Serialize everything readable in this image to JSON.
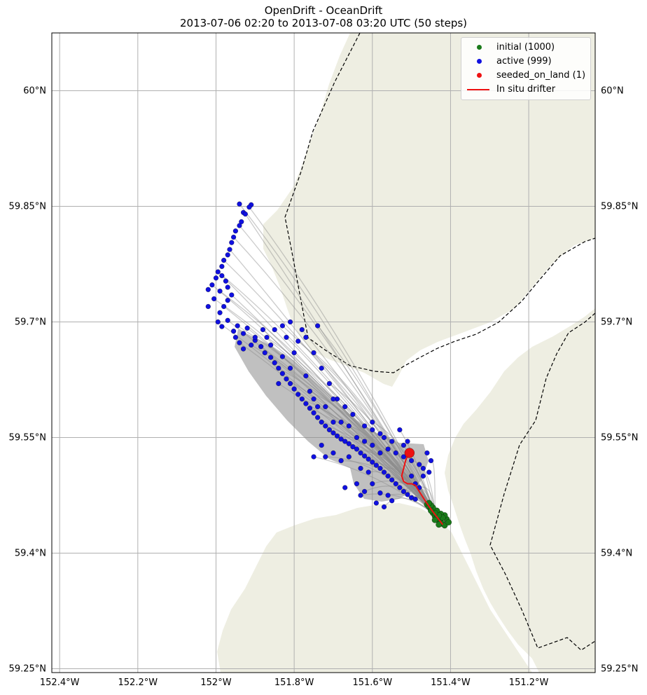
{
  "colors": {
    "land": "#eeeee2",
    "ocean": "#ffffff",
    "grid": "#b0b0b0",
    "trajectory": "#8c8c8c",
    "initial": "#1a7a1a",
    "active": "#1010e0",
    "seeded": "#ee1111",
    "drifter": "#ee1111",
    "boundary": "#000000"
  },
  "chart_data": {
    "type": "scatter",
    "title": "OpenDrift - OceanDrift",
    "subtitle": "2013-07-06 02:20 to 2013-07-08 03:20 UTC (50 steps)",
    "xlim": [
      -152.42,
      -151.03
    ],
    "ylim": [
      59.245,
      60.075
    ],
    "grid": true,
    "x_ticks": [
      -152.4,
      -152.2,
      -152.0,
      -151.8,
      -151.6,
      -151.4,
      -151.2
    ],
    "x_tick_labels": [
      "152.4°W",
      "152.2°W",
      "152°W",
      "151.8°W",
      "151.6°W",
      "151.4°W",
      "151.2°W"
    ],
    "y_ticks": [
      60.0,
      59.85,
      59.7,
      59.55,
      59.4,
      59.25
    ],
    "y_tick_labels": [
      "60°N",
      "59.85°N",
      "59.7°N",
      "59.55°N",
      "59.4°N",
      "59.25°N"
    ],
    "legend_position": "top-right",
    "legend": [
      {
        "label": "initial (1000)",
        "kind": "dot",
        "color": "#1a7a1a"
      },
      {
        "label": "active (999)",
        "kind": "dot",
        "color": "#1010e0"
      },
      {
        "label": "seeded_on_land (1)",
        "kind": "dot",
        "color": "#ee1111"
      },
      {
        "label": "In situ drifter",
        "kind": "line",
        "color": "#ee1111"
      }
    ],
    "series": [
      {
        "name": "initial (1000)",
        "points": [
          [
            -151.46,
            59.463
          ],
          [
            -151.455,
            59.46
          ],
          [
            -151.45,
            59.456
          ],
          [
            -151.445,
            59.452
          ],
          [
            -151.44,
            59.448
          ],
          [
            -151.435,
            59.446
          ],
          [
            -151.43,
            59.442
          ],
          [
            -151.425,
            59.44
          ],
          [
            -151.42,
            59.438
          ],
          [
            -151.41,
            59.444
          ],
          [
            -151.415,
            59.449
          ],
          [
            -151.425,
            59.451
          ],
          [
            -151.435,
            59.455
          ],
          [
            -151.445,
            59.459
          ],
          [
            -151.45,
            59.462
          ],
          [
            -151.455,
            59.465
          ],
          [
            -151.44,
            59.443
          ],
          [
            -151.43,
            59.437
          ],
          [
            -151.415,
            59.436
          ],
          [
            -151.405,
            59.44
          ],
          [
            -151.42,
            59.446
          ],
          [
            -151.43,
            59.449
          ],
          [
            -151.44,
            59.452
          ],
          [
            -151.45,
            59.455
          ]
        ]
      },
      {
        "name": "active (999)",
        "points": [
          [
            -151.94,
            59.853
          ],
          [
            -151.91,
            59.852
          ],
          [
            -151.915,
            59.849
          ],
          [
            -151.93,
            59.842
          ],
          [
            -151.925,
            59.84
          ],
          [
            -151.935,
            59.83
          ],
          [
            -151.94,
            59.825
          ],
          [
            -151.95,
            59.818
          ],
          [
            -151.955,
            59.81
          ],
          [
            -151.96,
            59.803
          ],
          [
            -151.965,
            59.794
          ],
          [
            -151.97,
            59.787
          ],
          [
            -151.98,
            59.78
          ],
          [
            -151.985,
            59.772
          ],
          [
            -151.995,
            59.765
          ],
          [
            -152.0,
            59.757
          ],
          [
            -151.985,
            59.76
          ],
          [
            -151.975,
            59.753
          ],
          [
            -152.01,
            59.748
          ],
          [
            -152.02,
            59.742
          ],
          [
            -151.99,
            59.74
          ],
          [
            -151.97,
            59.745
          ],
          [
            -151.96,
            59.735
          ],
          [
            -151.97,
            59.728
          ],
          [
            -151.98,
            59.72
          ],
          [
            -151.99,
            59.712
          ],
          [
            -152.005,
            59.73
          ],
          [
            -152.02,
            59.72
          ],
          [
            -151.995,
            59.7
          ],
          [
            -151.985,
            59.694
          ],
          [
            -151.97,
            59.702
          ],
          [
            -151.955,
            59.688
          ],
          [
            -151.945,
            59.695
          ],
          [
            -151.93,
            59.685
          ],
          [
            -151.92,
            59.692
          ],
          [
            -151.95,
            59.68
          ],
          [
            -151.94,
            59.673
          ],
          [
            -151.93,
            59.665
          ],
          [
            -151.91,
            59.67
          ],
          [
            -151.9,
            59.676
          ],
          [
            -151.885,
            59.668
          ],
          [
            -151.875,
            59.66
          ],
          [
            -151.86,
            59.654
          ],
          [
            -151.85,
            59.647
          ],
          [
            -151.84,
            59.64
          ],
          [
            -151.83,
            59.633
          ],
          [
            -151.82,
            59.626
          ],
          [
            -151.81,
            59.62
          ],
          [
            -151.8,
            59.613
          ],
          [
            -151.79,
            59.606
          ],
          [
            -151.78,
            59.6
          ],
          [
            -151.77,
            59.594
          ],
          [
            -151.76,
            59.588
          ],
          [
            -151.75,
            59.582
          ],
          [
            -151.74,
            59.576
          ],
          [
            -151.73,
            59.57
          ],
          [
            -151.72,
            59.565
          ],
          [
            -151.71,
            59.56
          ],
          [
            -151.7,
            59.556
          ],
          [
            -151.69,
            59.552
          ],
          [
            -151.68,
            59.548
          ],
          [
            -151.67,
            59.545
          ],
          [
            -151.66,
            59.542
          ],
          [
            -151.65,
            59.538
          ],
          [
            -151.64,
            59.535
          ],
          [
            -151.63,
            59.53
          ],
          [
            -151.62,
            59.526
          ],
          [
            -151.61,
            59.522
          ],
          [
            -151.6,
            59.518
          ],
          [
            -151.59,
            59.514
          ],
          [
            -151.58,
            59.51
          ],
          [
            -151.57,
            59.505
          ],
          [
            -151.56,
            59.5
          ],
          [
            -151.55,
            59.495
          ],
          [
            -151.54,
            59.49
          ],
          [
            -151.53,
            59.485
          ],
          [
            -151.52,
            59.48
          ],
          [
            -151.51,
            59.476
          ],
          [
            -151.5,
            59.472
          ],
          [
            -151.49,
            59.47
          ],
          [
            -151.82,
            59.68
          ],
          [
            -151.8,
            59.66
          ],
          [
            -151.79,
            59.675
          ],
          [
            -151.81,
            59.64
          ],
          [
            -151.83,
            59.655
          ],
          [
            -151.86,
            59.67
          ],
          [
            -151.84,
            59.62
          ],
          [
            -151.77,
            59.63
          ],
          [
            -151.76,
            59.61
          ],
          [
            -151.75,
            59.6
          ],
          [
            -151.74,
            59.59
          ],
          [
            -151.72,
            59.59
          ],
          [
            -151.7,
            59.57
          ],
          [
            -151.68,
            59.57
          ],
          [
            -151.66,
            59.565
          ],
          [
            -151.64,
            59.55
          ],
          [
            -151.62,
            59.545
          ],
          [
            -151.6,
            59.54
          ],
          [
            -151.58,
            59.53
          ],
          [
            -151.56,
            59.535
          ],
          [
            -151.54,
            59.53
          ],
          [
            -151.52,
            59.525
          ],
          [
            -151.5,
            59.52
          ],
          [
            -151.48,
            59.515
          ],
          [
            -151.47,
            59.51
          ],
          [
            -151.73,
            59.54
          ],
          [
            -151.72,
            59.525
          ],
          [
            -151.7,
            59.53
          ],
          [
            -151.68,
            59.52
          ],
          [
            -151.66,
            59.525
          ],
          [
            -151.75,
            59.525
          ],
          [
            -151.63,
            59.51
          ],
          [
            -151.61,
            59.505
          ],
          [
            -151.64,
            59.49
          ],
          [
            -151.6,
            59.49
          ],
          [
            -151.58,
            59.478
          ],
          [
            -151.56,
            59.475
          ],
          [
            -151.55,
            59.468
          ],
          [
            -151.57,
            59.46
          ],
          [
            -151.59,
            59.465
          ],
          [
            -151.62,
            59.48
          ],
          [
            -151.67,
            59.485
          ],
          [
            -151.63,
            59.475
          ],
          [
            -151.5,
            59.5
          ],
          [
            -151.49,
            59.49
          ],
          [
            -151.46,
            59.53
          ],
          [
            -151.45,
            59.52
          ],
          [
            -151.47,
            59.5
          ],
          [
            -151.48,
            59.485
          ],
          [
            -151.455,
            59.505
          ],
          [
            -151.88,
            59.69
          ],
          [
            -151.9,
            59.68
          ],
          [
            -151.87,
            59.68
          ],
          [
            -151.85,
            59.69
          ],
          [
            -151.83,
            59.695
          ],
          [
            -151.81,
            59.7
          ],
          [
            -151.78,
            59.69
          ],
          [
            -151.77,
            59.68
          ],
          [
            -151.75,
            59.66
          ],
          [
            -151.73,
            59.64
          ],
          [
            -151.71,
            59.62
          ],
          [
            -151.69,
            59.6
          ],
          [
            -151.67,
            59.59
          ],
          [
            -151.65,
            59.58
          ],
          [
            -151.62,
            59.565
          ],
          [
            -151.6,
            59.56
          ],
          [
            -151.58,
            59.555
          ],
          [
            -151.55,
            59.545
          ],
          [
            -151.52,
            59.54
          ],
          [
            -151.51,
            59.545
          ],
          [
            -151.74,
            59.695
          ],
          [
            -151.7,
            59.6
          ],
          [
            -151.6,
            59.57
          ],
          [
            -151.57,
            59.55
          ],
          [
            -151.53,
            59.56
          ]
        ]
      },
      {
        "name": "seeded_on_land (1)",
        "points": [
          [
            -151.505,
            59.53
          ]
        ]
      },
      {
        "name": "In situ drifter",
        "points": [
          [
            -151.42,
            59.437
          ],
          [
            -151.435,
            59.447
          ],
          [
            -151.45,
            59.457
          ],
          [
            -151.465,
            59.468
          ],
          [
            -151.48,
            59.48
          ],
          [
            -151.49,
            59.488
          ],
          [
            -151.5,
            59.49
          ],
          [
            -151.51,
            59.49
          ],
          [
            -151.52,
            59.493
          ],
          [
            -151.525,
            59.5
          ],
          [
            -151.52,
            59.51
          ],
          [
            -151.515,
            59.52
          ],
          [
            -151.51,
            59.526
          ],
          [
            -151.505,
            59.53
          ]
        ]
      }
    ]
  }
}
